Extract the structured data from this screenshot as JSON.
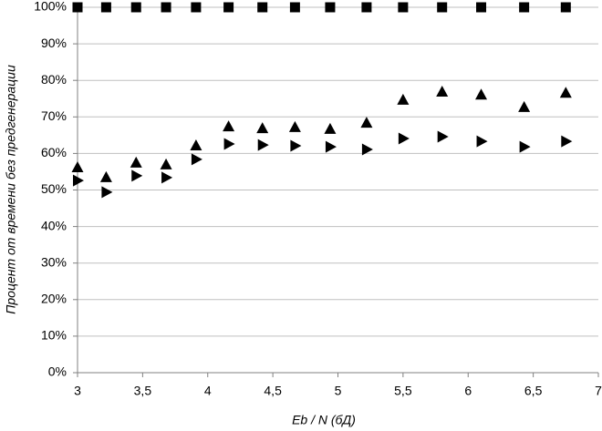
{
  "chart_data": {
    "type": "scatter",
    "x_label": "Eb / N (бД)",
    "y_label": "Процент от времени без предгенерации",
    "xlim": [
      3,
      7
    ],
    "xticks": [
      3,
      {
        "value": 3.5,
        "label": "3,5"
      },
      4,
      {
        "value": 4.5,
        "label": "4,5"
      },
      5,
      {
        "value": 5.5,
        "label": "5,5"
      },
      6,
      {
        "value": 6.5,
        "label": "6,5"
      },
      7
    ],
    "ylim": [
      0,
      100
    ],
    "yticks": [
      {
        "value": 0,
        "label": "0%"
      },
      {
        "value": 10,
        "label": "10%"
      },
      {
        "value": 20,
        "label": "20%"
      },
      {
        "value": 30,
        "label": "30%"
      },
      {
        "value": 40,
        "label": "40%"
      },
      {
        "value": 50,
        "label": "50%"
      },
      {
        "value": 60,
        "label": "60%"
      },
      {
        "value": 70,
        "label": "70%"
      },
      {
        "value": 80,
        "label": "80%"
      },
      {
        "value": 90,
        "label": "90%"
      },
      {
        "value": 100,
        "label": "100%"
      }
    ],
    "grid": true,
    "x": [
      3.0,
      3.22,
      3.45,
      3.68,
      3.91,
      4.16,
      4.42,
      4.67,
      4.94,
      5.22,
      5.5,
      5.8,
      6.1,
      6.43,
      6.75
    ],
    "series": [
      {
        "marker": "square",
        "color": "#000000",
        "values": [
          100,
          100,
          100,
          100,
          100,
          100,
          100,
          100,
          100,
          100,
          100,
          100,
          100,
          100,
          100
        ]
      },
      {
        "marker": "triangle-up",
        "color": "#000000",
        "values": [
          56.1,
          53.4,
          57.4,
          56.9,
          62.1,
          67.3,
          66.8,
          67.1,
          66.6,
          68.3,
          74.6,
          76.8,
          76.0,
          72.6,
          76.5
        ]
      },
      {
        "marker": "triangle-right",
        "color": "#000000",
        "values": [
          52.6,
          49.4,
          53.9,
          53.4,
          58.4,
          62.6,
          62.3,
          62.1,
          61.8,
          61.1,
          64.1,
          64.6,
          63.3,
          61.8,
          63.3
        ]
      }
    ]
  }
}
